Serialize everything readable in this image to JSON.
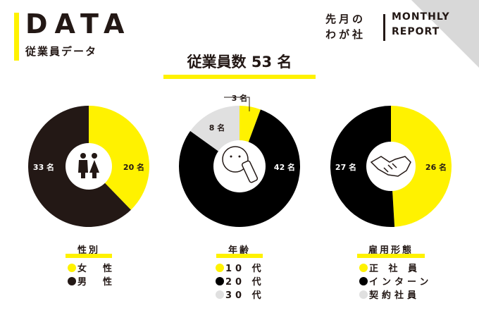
{
  "header": {
    "title": "DATA",
    "subtitle": "従業員データ",
    "report_line1": "先月の",
    "report_line2": "わが社",
    "report_en_line1": "MONTHLY",
    "report_en_line2": "REPORT"
  },
  "headline": "従業員数 53 名",
  "colors": {
    "yellow": "#fff200",
    "dark_brown": "#231815",
    "black": "#000000",
    "gray": "#e0e0e0"
  },
  "chart_data": [
    {
      "type": "pie",
      "legend_title": "性別",
      "center_icon": "male-female-icon",
      "slices": [
        {
          "label": "女　性",
          "value": 20,
          "value_label": "20 名",
          "color": "#fff200"
        },
        {
          "label": "男　性",
          "value": 33,
          "value_label": "33 名",
          "color": "#231815"
        }
      ]
    },
    {
      "type": "pie",
      "legend_title": "年齢",
      "center_icon": "baby-bottle-icon",
      "slices": [
        {
          "label": "10 代",
          "value": 3,
          "value_label": "3 名",
          "color": "#fff200"
        },
        {
          "label": "20 代",
          "value": 42,
          "value_label": "42 名",
          "color": "#000000"
        },
        {
          "label": "30 代",
          "value": 8,
          "value_label": "8 名",
          "color": "#e0e0e0"
        }
      ]
    },
    {
      "type": "pie",
      "legend_title": "雇用形態",
      "center_icon": "handshake-icon",
      "slices": [
        {
          "label": "正 社 員",
          "value": 26,
          "value_label": "26 名",
          "color": "#fff200"
        },
        {
          "label": "インターン",
          "value": 27,
          "value_label": "27 名",
          "color": "#000000"
        },
        {
          "label": "契約社員",
          "value": 0,
          "value_label": "",
          "color": "#e0e0e0"
        }
      ]
    }
  ]
}
